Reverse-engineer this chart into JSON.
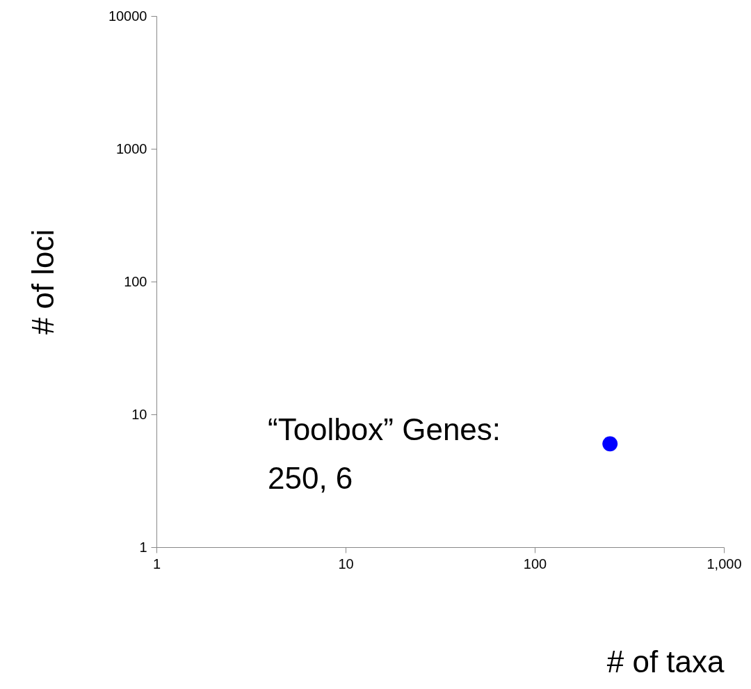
{
  "chart_data": {
    "type": "scatter",
    "xlabel": "# of taxa",
    "ylabel": "# of loci",
    "x": [
      250
    ],
    "series": [
      {
        "color": "#0000ff",
        "values": [
          6
        ]
      }
    ],
    "annotations": [
      "“Toolbox” Genes:\n250, 6"
    ],
    "log": "xy",
    "xlim": [
      1,
      1000
    ],
    "ylim": [
      1,
      10000
    ],
    "xticks": [
      1,
      10,
      100,
      {
        "value": 1000,
        "label": "1,000"
      }
    ],
    "yticks": [
      1,
      10,
      100,
      1000,
      10000
    ],
    "grid": false
  }
}
